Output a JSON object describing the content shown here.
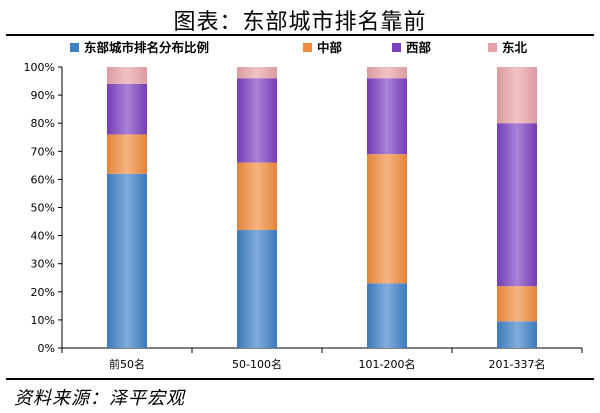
{
  "header": {
    "title": "图表：东部城市排名靠前"
  },
  "footer": {
    "source": "资料来源：泽平宏观"
  },
  "chart_data": {
    "type": "bar",
    "stacked": true,
    "categories": [
      "前50名",
      "50-100名",
      "101-200名",
      "201-337名"
    ],
    "series": [
      {
        "name": "东部城市排名分布比例",
        "color": "#3f7fc6",
        "values": [
          62,
          42,
          23,
          9.5
        ]
      },
      {
        "name": "中部",
        "color": "#f08b3c",
        "values": [
          14,
          24,
          46,
          12.5
        ]
      },
      {
        "name": "西部",
        "color": "#7b3fbf",
        "values": [
          18,
          30,
          27,
          58
        ]
      },
      {
        "name": "东北",
        "color": "#e6a3a7",
        "values": [
          6,
          4,
          4,
          20
        ]
      }
    ],
    "y_ticks": [
      "0%",
      "10%",
      "20%",
      "30%",
      "40%",
      "50%",
      "60%",
      "70%",
      "80%",
      "90%",
      "100%"
    ],
    "ylim": [
      0,
      100
    ],
    "legend_position": "top",
    "grid": false
  }
}
